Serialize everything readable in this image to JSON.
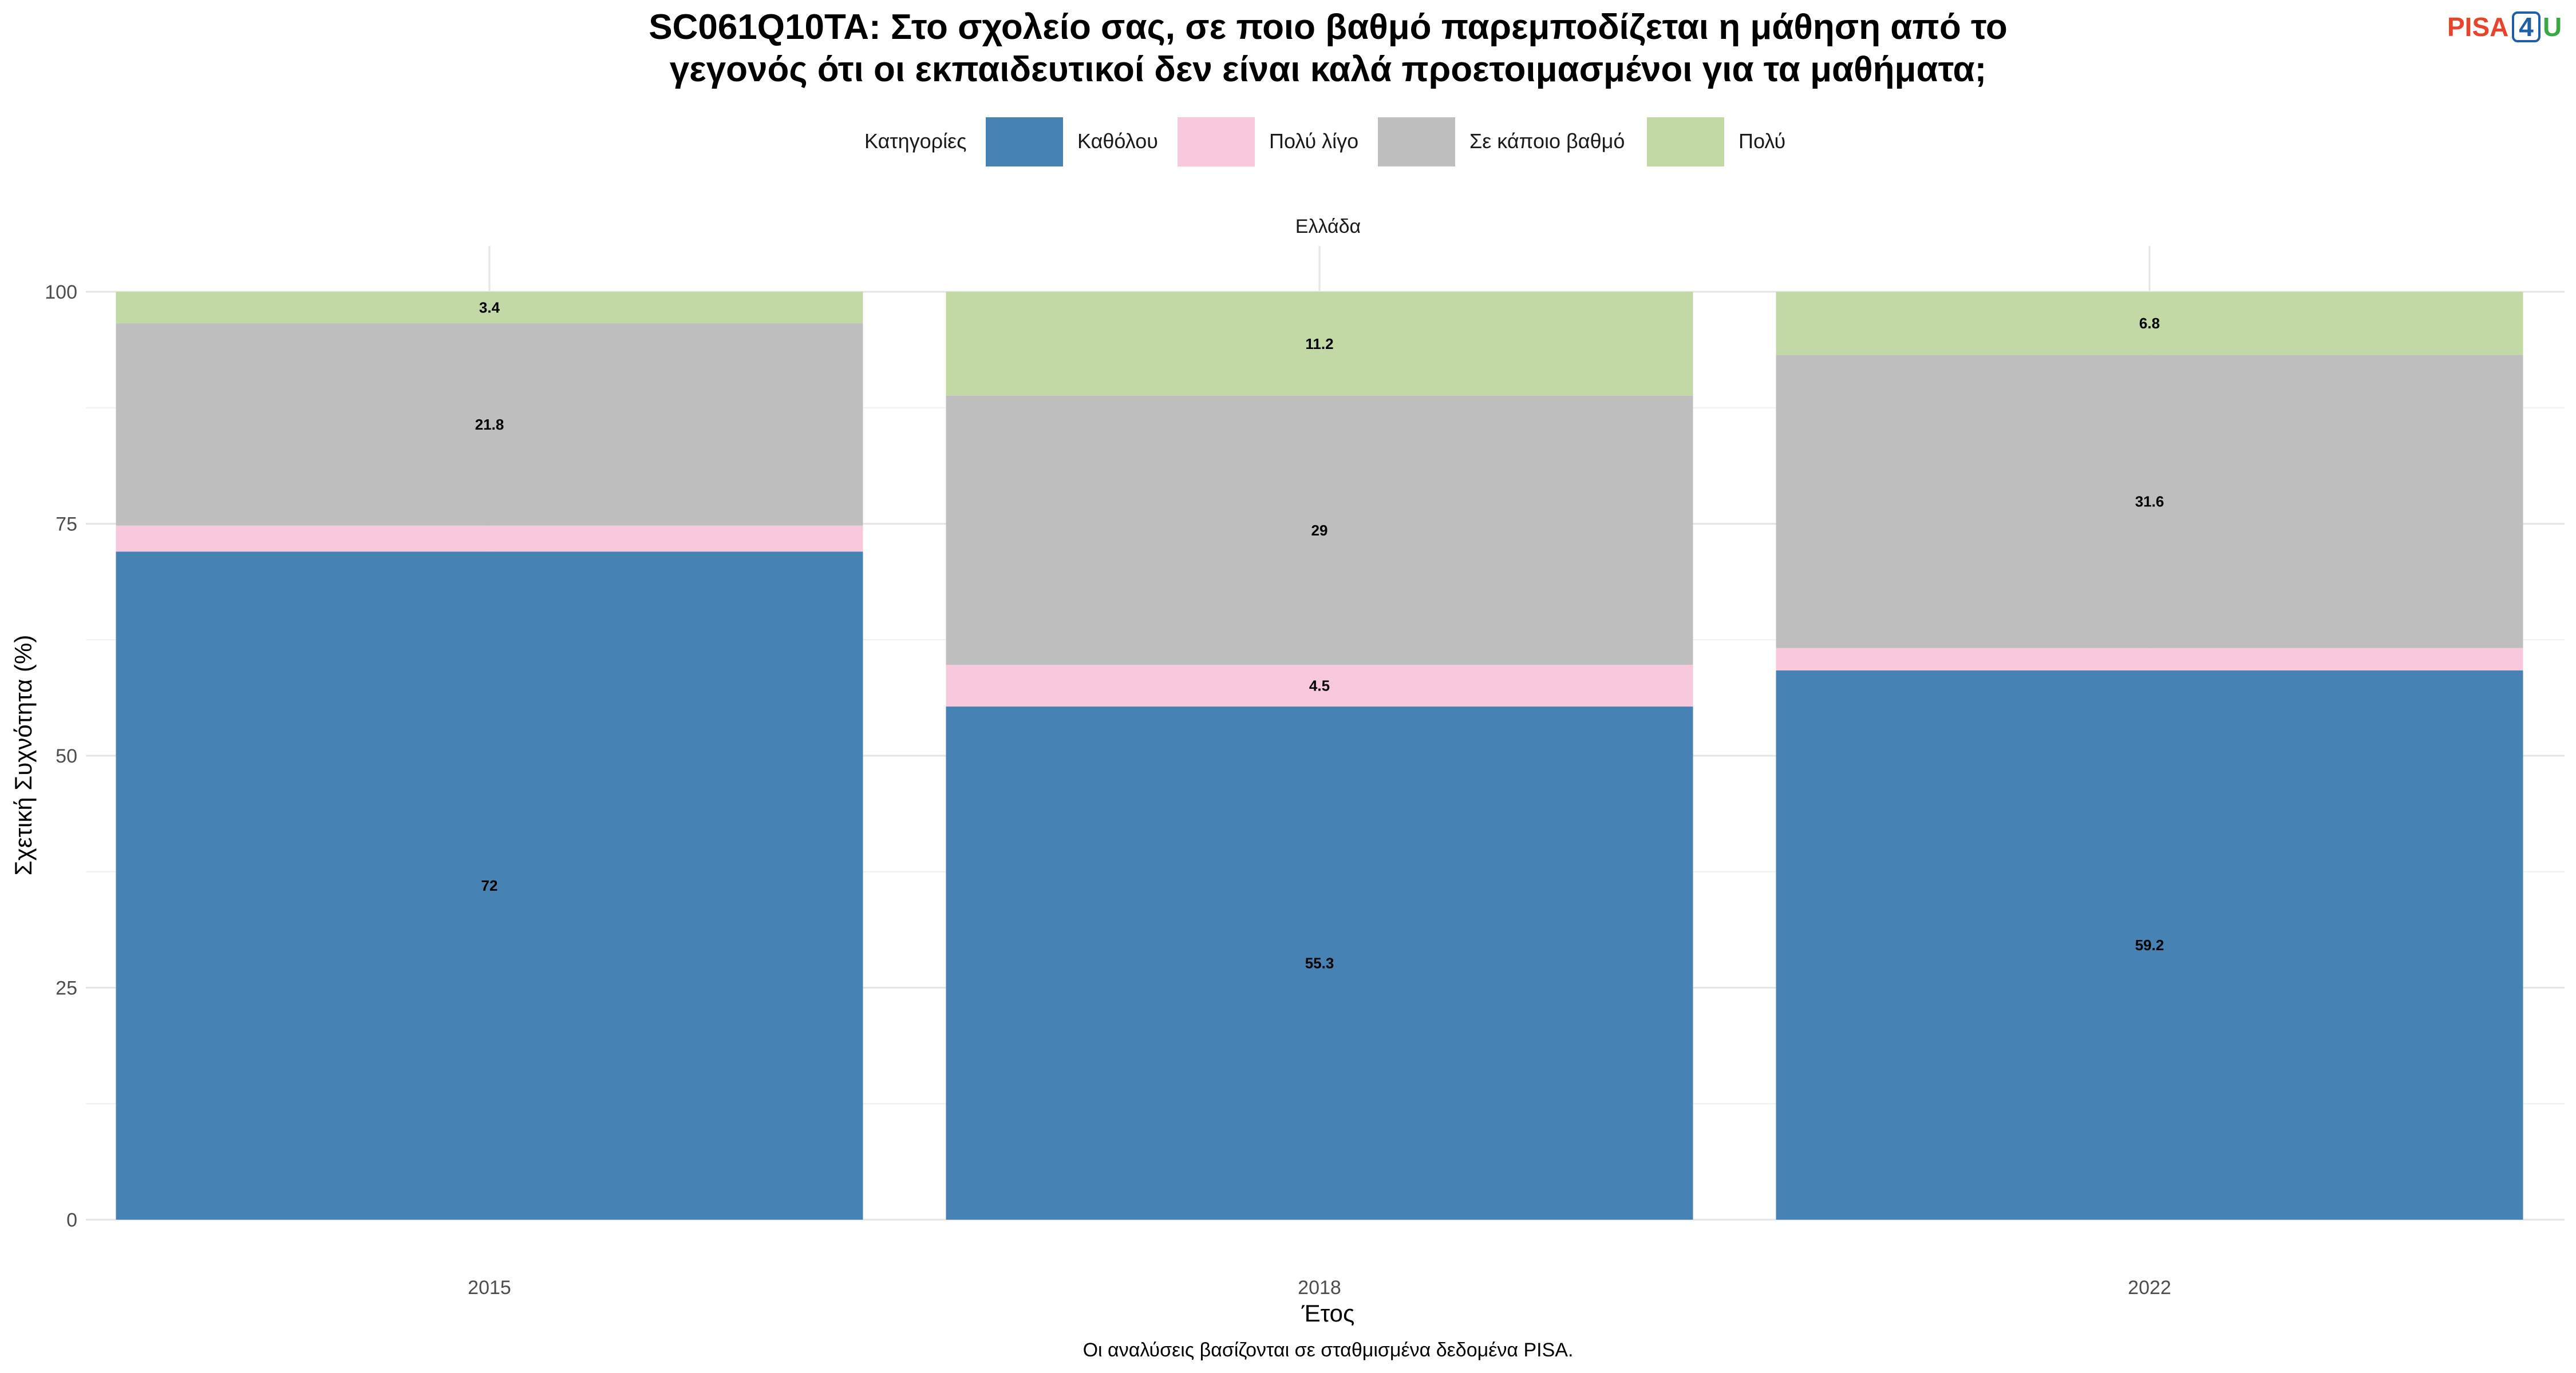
{
  "chart_data": {
    "type": "bar",
    "stacked": true,
    "title_lines": [
      "SC061Q10TA: Στο σχολείο σας, σε ποιο βαθμό παρεμποδίζεται η μάθηση από το",
      "γεγονός ότι οι εκπαιδευτικοί δεν είναι καλά προετοιμασμένοι για τα μαθήματα;"
    ],
    "facet": "Ελλάδα",
    "legend_title": "Κατηγορίες",
    "legend_position": "top",
    "xlabel": "Έτος",
    "ylabel": "Σχετική Συχνότητα (%)",
    "caption": "Οι αναλύσεις βασίζονται σε σταθμισμένα δεδομένα PISA.",
    "categories": [
      "2015",
      "2018",
      "2022"
    ],
    "ylim": [
      0,
      100
    ],
    "yticks": [
      0,
      25,
      50,
      75,
      100
    ],
    "grid": true,
    "series": [
      {
        "name": "Καθόλου",
        "color": "#4682b4",
        "values": [
          72,
          55.3,
          59.2
        ],
        "labels": [
          "72",
          "55.3",
          "59.2"
        ]
      },
      {
        "name": "Πολύ λίγο",
        "color": "#f8c8dc",
        "values": [
          2.8,
          4.5,
          2.4
        ],
        "labels": [
          null,
          "4.5",
          null
        ]
      },
      {
        "name": "Σε κάποιο βαθμό",
        "color": "#bebebe",
        "values": [
          21.8,
          29,
          31.6
        ],
        "labels": [
          "21.8",
          "29",
          "31.6"
        ]
      },
      {
        "name": "Πολύ",
        "color": "#c2d8a5",
        "values": [
          3.4,
          11.2,
          6.8
        ],
        "labels": [
          "3.4",
          "11.2",
          "6.8"
        ]
      }
    ]
  },
  "logo": {
    "part1": "PISA",
    "part2": "4",
    "part3": "U",
    "color1": "#e8442c",
    "color2": "#1f5fa8",
    "color3": "#3aa845"
  }
}
